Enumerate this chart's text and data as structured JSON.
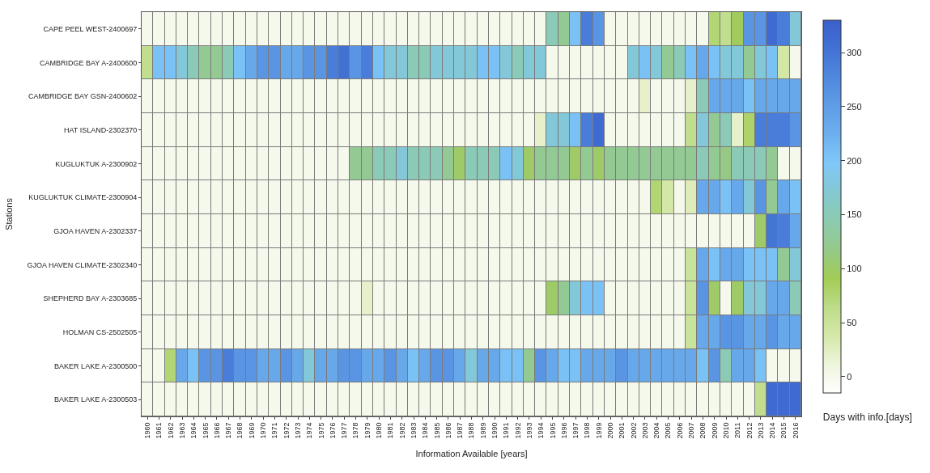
{
  "chart_data": {
    "type": "heatmap",
    "xlabel": "Information Available [years]",
    "ylabel": "Stations",
    "clabel": "Days with info.[days]",
    "categories": [
      "1960",
      "1961",
      "1962",
      "1963",
      "1964",
      "1965",
      "1966",
      "1967",
      "1968",
      "1969",
      "1970",
      "1971",
      "1972",
      "1973",
      "1974",
      "1975",
      "1976",
      "1977",
      "1978",
      "1979",
      "1980",
      "1981",
      "1982",
      "1983",
      "1984",
      "1985",
      "1986",
      "1987",
      "1988",
      "1989",
      "1990",
      "1991",
      "1992",
      "1993",
      "1994",
      "1995",
      "1996",
      "1997",
      "1998",
      "1999",
      "2000",
      "2001",
      "2002",
      "2003",
      "2004",
      "2005",
      "2006",
      "2007",
      "2008",
      "2009",
      "2010",
      "2011",
      "2012",
      "2013",
      "2014",
      "2015",
      "2016"
    ],
    "y_categories": [
      "CAPE PEEL WEST-2400697",
      "CAMBRIDGE BAY A-2400600",
      "CAMBRIDGE BAY GSN-2400602",
      "HAT ISLAND-2302370",
      "KUGLUKTUK A-2300902",
      "KUGLUKTUK CLIMATE-2300904",
      "GJOA HAVEN A-2302337",
      "GJOA HAVEN CLIMATE-2302340",
      "SHEPHERD BAY A-2303685",
      "HOLMAN CS-2502505",
      "BAKER LAKE A-2300500",
      "BAKER LAKE A-2300503"
    ],
    "cells": [
      [
        0,
        0,
        0,
        0,
        0,
        0,
        0,
        0,
        0,
        0,
        0,
        0,
        0,
        0,
        0,
        0,
        0,
        0,
        0,
        0,
        0,
        0,
        0,
        0,
        0,
        0,
        0,
        0,
        0,
        0,
        0,
        0,
        0,
        0,
        0,
        150,
        125,
        205,
        290,
        260,
        0,
        0,
        0,
        0,
        0,
        0,
        0,
        0,
        0,
        75,
        60,
        95,
        260,
        260,
        315,
        290,
        175
      ],
      [
        60,
        205,
        205,
        175,
        150,
        125,
        125,
        150,
        205,
        235,
        260,
        260,
        235,
        235,
        260,
        260,
        290,
        305,
        260,
        290,
        205,
        175,
        175,
        150,
        150,
        175,
        175,
        175,
        175,
        205,
        205,
        175,
        150,
        175,
        175,
        0,
        0,
        0,
        0,
        0,
        0,
        0,
        175,
        205,
        175,
        125,
        150,
        205,
        235,
        205,
        175,
        175,
        125,
        175,
        205,
        40,
        0
      ],
      [
        0,
        0,
        0,
        0,
        0,
        0,
        0,
        0,
        0,
        0,
        0,
        0,
        0,
        0,
        0,
        0,
        0,
        0,
        0,
        0,
        0,
        0,
        0,
        0,
        0,
        0,
        0,
        0,
        0,
        0,
        0,
        0,
        0,
        0,
        0,
        0,
        0,
        0,
        0,
        0,
        0,
        0,
        0,
        20,
        0,
        0,
        0,
        20,
        150,
        235,
        235,
        235,
        205,
        235,
        235,
        235,
        235
      ],
      [
        0,
        0,
        0,
        0,
        0,
        0,
        0,
        0,
        0,
        0,
        0,
        0,
        0,
        0,
        0,
        0,
        0,
        0,
        0,
        0,
        0,
        0,
        0,
        0,
        0,
        0,
        0,
        0,
        0,
        0,
        0,
        0,
        0,
        0,
        20,
        175,
        175,
        205,
        290,
        315,
        0,
        0,
        0,
        0,
        0,
        0,
        0,
        60,
        175,
        125,
        150,
        20,
        80,
        290,
        290,
        290,
        260
      ],
      [
        0,
        0,
        0,
        0,
        0,
        0,
        0,
        0,
        0,
        0,
        0,
        0,
        0,
        0,
        0,
        0,
        0,
        0,
        125,
        125,
        150,
        150,
        175,
        150,
        150,
        150,
        125,
        100,
        150,
        150,
        150,
        205,
        175,
        100,
        125,
        125,
        125,
        100,
        125,
        100,
        125,
        125,
        125,
        125,
        125,
        125,
        125,
        125,
        150,
        125,
        115,
        150,
        150,
        150,
        125,
        0,
        0
      ],
      [
        0,
        0,
        0,
        0,
        0,
        0,
        0,
        0,
        0,
        0,
        0,
        0,
        0,
        0,
        0,
        0,
        0,
        0,
        0,
        0,
        0,
        0,
        0,
        0,
        0,
        0,
        0,
        0,
        0,
        0,
        0,
        0,
        0,
        0,
        0,
        0,
        0,
        0,
        0,
        0,
        0,
        0,
        0,
        0,
        75,
        40,
        0,
        30,
        235,
        235,
        205,
        235,
        175,
        260,
        125,
        235,
        205
      ],
      [
        0,
        0,
        0,
        0,
        0,
        0,
        0,
        0,
        0,
        0,
        0,
        0,
        0,
        0,
        0,
        0,
        0,
        0,
        0,
        0,
        0,
        0,
        0,
        0,
        0,
        0,
        0,
        0,
        0,
        0,
        0,
        0,
        0,
        0,
        0,
        0,
        0,
        0,
        0,
        0,
        0,
        0,
        0,
        0,
        0,
        0,
        0,
        0,
        0,
        0,
        0,
        0,
        0,
        100,
        300,
        290,
        235
      ],
      [
        0,
        0,
        0,
        0,
        0,
        0,
        0,
        0,
        0,
        0,
        0,
        0,
        0,
        0,
        0,
        0,
        0,
        0,
        0,
        0,
        0,
        0,
        0,
        0,
        0,
        0,
        0,
        0,
        0,
        0,
        0,
        0,
        0,
        0,
        0,
        0,
        0,
        0,
        0,
        0,
        0,
        0,
        0,
        0,
        0,
        0,
        0,
        50,
        235,
        205,
        235,
        235,
        205,
        205,
        205,
        125,
        175
      ],
      [
        0,
        0,
        0,
        0,
        0,
        0,
        0,
        0,
        0,
        0,
        0,
        0,
        0,
        0,
        0,
        0,
        0,
        0,
        0,
        20,
        0,
        0,
        0,
        0,
        0,
        0,
        0,
        0,
        0,
        0,
        0,
        0,
        0,
        0,
        0,
        100,
        125,
        175,
        205,
        205,
        0,
        0,
        0,
        0,
        0,
        0,
        0,
        50,
        260,
        100,
        0,
        100,
        175,
        175,
        235,
        235,
        150
      ],
      [
        0,
        0,
        0,
        0,
        0,
        0,
        0,
        0,
        0,
        0,
        0,
        0,
        0,
        0,
        0,
        0,
        0,
        0,
        0,
        0,
        0,
        0,
        0,
        0,
        0,
        0,
        0,
        0,
        0,
        0,
        0,
        0,
        0,
        0,
        0,
        0,
        0,
        0,
        0,
        0,
        0,
        0,
        0,
        0,
        0,
        0,
        0,
        50,
        235,
        235,
        260,
        260,
        235,
        235,
        260,
        235,
        235
      ],
      [
        0,
        0,
        75,
        235,
        205,
        260,
        260,
        290,
        260,
        260,
        235,
        235,
        260,
        235,
        175,
        235,
        235,
        260,
        260,
        235,
        235,
        260,
        235,
        205,
        235,
        260,
        260,
        235,
        175,
        235,
        235,
        205,
        205,
        125,
        260,
        235,
        205,
        205,
        235,
        235,
        235,
        260,
        235,
        235,
        235,
        235,
        235,
        235,
        205,
        260,
        150,
        235,
        235,
        205,
        0,
        0,
        0
      ],
      [
        0,
        0,
        0,
        0,
        0,
        0,
        0,
        0,
        0,
        0,
        0,
        0,
        0,
        0,
        0,
        0,
        0,
        0,
        0,
        0,
        0,
        0,
        0,
        0,
        0,
        0,
        0,
        0,
        0,
        0,
        0,
        0,
        0,
        0,
        0,
        0,
        0,
        0,
        0,
        0,
        0,
        0,
        0,
        0,
        0,
        0,
        0,
        0,
        0,
        0,
        0,
        0,
        0,
        60,
        315,
        315,
        315
      ]
    ],
    "clim": [
      -15,
      330
    ],
    "cticks": [
      0,
      50,
      100,
      150,
      200,
      250,
      300
    ],
    "colors": [
      "#ffffff",
      "#eef5dc",
      "#d5e8a8",
      "#bcdc88",
      "#a3cc55",
      "#95c98a",
      "#8ccbb0",
      "#84c8d2",
      "#80c8f8",
      "#6db0ee",
      "#5f9de6",
      "#5088de",
      "#4272d4",
      "#3a5fcc"
    ]
  }
}
